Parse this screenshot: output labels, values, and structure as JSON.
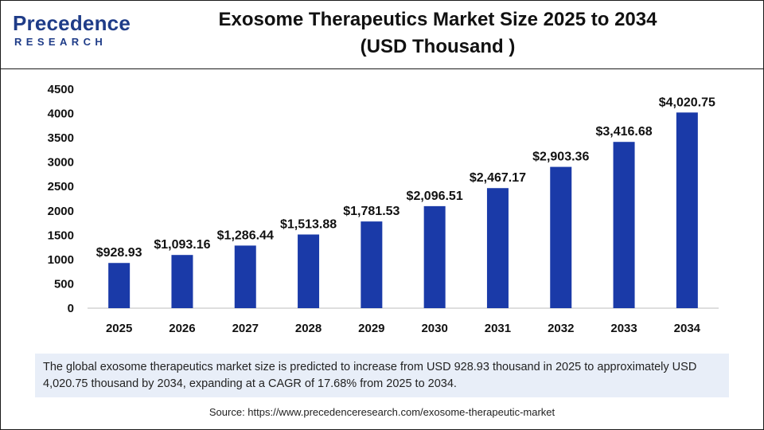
{
  "brand": {
    "name": "Precedence",
    "sub": "RESEARCH",
    "color": "#1f3c88"
  },
  "title_line1": "Exosome Therapeutics Market Size 2025 to 2034",
  "title_line2": "(USD Thousand )",
  "note": "The global exosome therapeutics market size is predicted to increase from USD 928.93 thousand  in 2025 to approximately USD 4,020.75 thousand by 2034, expanding at a CAGR of 17.68% from 2025 to 2034.",
  "source": "Source: https://www.precedenceresearch.com/exosome-therapeutic-market",
  "chart_data": {
    "type": "bar",
    "title": "Exosome Therapeutics Market Size 2025 to 2034 (USD Thousand )",
    "categories": [
      "2025",
      "2026",
      "2027",
      "2028",
      "2029",
      "2030",
      "2031",
      "2032",
      "2033",
      "2034"
    ],
    "values": [
      928.93,
      1093.16,
      1286.44,
      1513.88,
      1781.53,
      2096.51,
      2467.17,
      2903.36,
      3416.68,
      4020.75
    ],
    "data_labels": [
      "$928.93",
      "$1,093.16",
      "$1,286.44",
      "$1,513.88",
      "$1,781.53",
      "$2,096.51",
      "$2,467.17",
      "$2,903.36",
      "$3,416.68",
      "$4,020.75"
    ],
    "ylim": [
      0,
      4500
    ],
    "yticks": [
      0,
      500,
      1000,
      1500,
      2000,
      2500,
      3000,
      3500,
      4000,
      4500
    ],
    "xlabel": "",
    "ylabel": "",
    "grid": false,
    "legend": "none",
    "bar_color": "#1a3aa8"
  }
}
